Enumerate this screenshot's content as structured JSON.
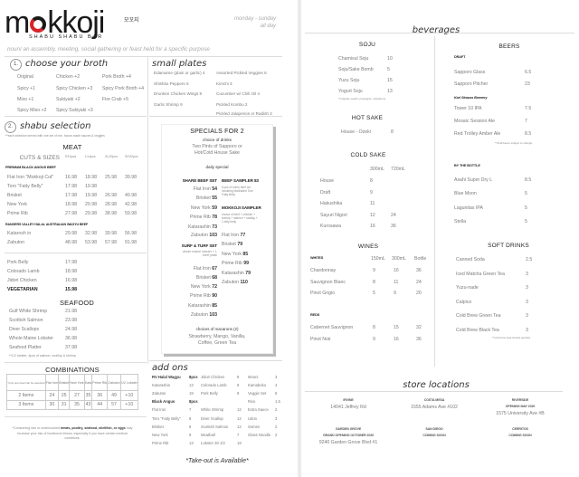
{
  "header": {
    "logo": "mokkoji",
    "logo_korean": "모꼬지",
    "logo_sub": "SHABU SHABU BAR",
    "hours_days": "monday - sunday",
    "hours_time": "all day",
    "tagline": "noun/ an assembly, meeting, social gathering or feast held for a specific purpose"
  },
  "broth": {
    "number": "1.",
    "title": "choose your broth",
    "items": [
      "Original",
      "Spicy +1",
      "Miso +1",
      "Spicy Miso +2",
      "Chicken +2",
      "Spicy Chicken +3",
      "Sukiyaki +2",
      "Spicy Sukiyaki +3",
      "Pork Broth +4",
      "Spicy Pork Broth +4",
      "Fire Crab +5"
    ]
  },
  "small_plates": {
    "title": "small plates",
    "items": [
      "Edamame (plain or garlic) 4",
      "Shishito Peppers 6",
      "Drunken Chicken Wings 9",
      "Garlic Shrimp 9",
      "Assorted Pickled Veggies 6",
      "Kimchi 3",
      "Cucumber w/ Chili Oil 4",
      "Pickled Kombu 2",
      "Pickled Jalapenos or Radish 2"
    ]
  },
  "shabu": {
    "number": "2.",
    "title": "shabu selection",
    "note": "**each selection served with one set of rice, house-made sauces & veggies",
    "meat_title": "MEAT",
    "sizes_label": "CUTS & SIZES",
    "sizes": [
      "R10pcs",
      "L14pcs",
      "XL20pcs",
      "SH32pcs"
    ],
    "premium_label": "PREMIUM BLACK ANGUS BEEF",
    "premium": [
      {
        "name": "Flat Iron \"Mokkoji Cut\"",
        "prices": [
          "16.98",
          "18.98",
          "25.98",
          "39.98"
        ]
      },
      {
        "name": "Toro \"Fatty Belly\"",
        "prices": [
          "17.98",
          "19.98",
          "",
          ""
        ]
      },
      {
        "name": "Brisket",
        "prices": [
          "17.98",
          "19.98",
          "26.98",
          "40.98"
        ]
      },
      {
        "name": "New York",
        "prices": [
          "18.98",
          "20.98",
          "28.98",
          "42.98"
        ]
      },
      {
        "name": "Prime Rib",
        "prices": [
          "27.98",
          "29.98",
          "38.98",
          "59.98"
        ]
      }
    ],
    "wagyu_label": "RANGERS VALLEY HALAL AUSTRALIAN WAGYU BEEF",
    "wagyu": [
      {
        "name": "Katarosh in",
        "prices": [
          "29.98",
          "32.98",
          "39.98",
          "56.98"
        ]
      },
      {
        "name": "Zabuton",
        "prices": [
          "48.98",
          "53.98",
          "57.98",
          "91.98"
        ]
      }
    ],
    "others": [
      {
        "name": "Pork Belly",
        "price": "17.98"
      },
      {
        "name": "Colorado Lamb",
        "price": "18.98"
      },
      {
        "name": "Jidori Chicken",
        "price": "16.98"
      }
    ],
    "vegetarian": {
      "name": "VEGETARIAN",
      "price": "15.98"
    },
    "seafood_title": "SEAFOOD",
    "seafood": [
      {
        "name": "Gulf White Shrimp",
        "price": "21.98"
      },
      {
        "name": "Scottish Salmon",
        "price": "23.98"
      },
      {
        "name": "Diver Scallops",
        "price": "24.98"
      },
      {
        "name": "Whole Maine Lobster",
        "price": "36.98"
      },
      {
        "name": "Seafood Platter",
        "price": "37.98"
      }
    ],
    "seafood_note": "**1/2 lobster, 4pcs of salmon, scallop & shrimp"
  },
  "combinations": {
    "title": "COMBINATIONS",
    "corner_note": "*only one beef can be selected",
    "columns": [
      "Flat Iron",
      "Brisket",
      "New York",
      "Kata",
      "Prime Rib",
      "Zabuton",
      "1/2 Lobster"
    ],
    "rows": [
      {
        "label": "2 Items",
        "values": [
          "24",
          "25",
          "27",
          "35",
          "36",
          "49",
          "+10"
        ]
      },
      {
        "label": "3 Items",
        "values": [
          "30",
          "31",
          "35",
          "43",
          "44",
          "57",
          "+10"
        ]
      }
    ]
  },
  "disclaimer": {
    "pre": "*Consuming raw or undercooked ",
    "bold": "meats, poultry, seafood, shellfish, or eggs",
    "post": " may increase your risk of foodborne illness, especially if you have certain medical conditions."
  },
  "specials": {
    "title": "SPECIALS FOR 2",
    "drinks_label": "choice of drinks",
    "drinks_1": "Two Pints of Sapporo or",
    "drinks_2": "Hot/Cold House Sake",
    "daily": "daily special",
    "share_beef": {
      "title": "SHARE BEEF SET",
      "items": [
        {
          "name": "Flat Iron",
          "price": "54"
        },
        {
          "name": "Brisket",
          "price": "55"
        },
        {
          "name": "New York",
          "price": "59"
        },
        {
          "name": "Prime Rib",
          "price": "78"
        },
        {
          "name": "Katarashin",
          "price": "73"
        },
        {
          "name": "Zabuton",
          "price": "103"
        }
      ]
    },
    "surf_turf": {
      "title": "SURF & TURF SET",
      "note_1": "whole maine lobster + L",
      "note_2": "beef plate",
      "items": [
        {
          "name": "Flat Iron",
          "price": "67"
        },
        {
          "name": "Brisket",
          "price": "68"
        },
        {
          "name": "New York",
          "price": "72"
        },
        {
          "name": "Prime Rib",
          "price": "90"
        },
        {
          "name": "Katarashin",
          "price": "85"
        },
        {
          "name": "Zabuton",
          "price": "103"
        }
      ]
    },
    "beef_sampler": {
      "title": "BEEF SAMPLER 83",
      "note_1": "6 pcs of every beef cut",
      "note_2": "including Marinated Toro",
      "note_3": "Fatty Belly"
    },
    "mokkoji_sampler": {
      "title": "MOKKOJI SAMPLER",
      "note_1": "choice of beef + chicken +",
      "note_2": "shrimp + salmon + scallop +",
      "note_3": "L fatty belly",
      "items": [
        {
          "name": "Flat Iron",
          "price": "77"
        },
        {
          "name": "Brisket",
          "price": "79"
        },
        {
          "name": "New York",
          "price": "85"
        },
        {
          "name": "Prime Rib",
          "price": "99"
        },
        {
          "name": "Katarashin",
          "price": "79"
        },
        {
          "name": "Zabuton",
          "price": "110"
        }
      ]
    },
    "macarons_label": "choices of macarons (2)",
    "macarons_1": "Strawberry, Mango, Vanilla,",
    "macarons_2": "Coffee, Green Tea"
  },
  "add_ons": {
    "title": "add ons",
    "rows": [
      [
        "RV Halal Wagyu",
        "8pcs",
        "Jidori Chicken",
        "8",
        "Mooni",
        "3"
      ],
      [
        "Katarashin",
        "13",
        "Colorado Lamb",
        "8",
        "Kamaboko",
        "4"
      ],
      [
        "Zabuton",
        "19",
        "Pork Belly",
        "8",
        "Veggie Set",
        "6"
      ],
      [
        "Black Angus",
        "8pcs",
        "",
        "",
        "Rice",
        "1.5"
      ],
      [
        "Flat Iron",
        "7",
        "White Shrimp",
        "12",
        "Extra Sauce",
        "2"
      ],
      [
        "Toro \"Fatty Belly\"",
        "8",
        "Diver Scallop",
        "12",
        "Udon",
        "3"
      ],
      [
        "Brisket",
        "8",
        "Scottish Salmon",
        "12",
        "Somen",
        "2"
      ],
      [
        "New York",
        "9",
        "Meatball",
        "7",
        "Glass Noodle",
        "2"
      ],
      [
        "Prime Rib",
        "13",
        "Lobster   30   1/2",
        "19",
        "",
        ""
      ]
    ]
  },
  "takeout": "*Take-out is Available*",
  "beverages": {
    "title": "beverages",
    "soju": {
      "title": "SOJU",
      "items": [
        {
          "name": "Chamisul Soju",
          "price": "10"
        },
        {
          "name": "Soju/Sake Bomb",
          "price": "5"
        },
        {
          "name": "Yuzu Soju",
          "price": "15"
        },
        {
          "name": "Yogurt Soju",
          "price": "13"
        }
      ],
      "note": "**original, peach, pineapple, strawberry"
    },
    "hot_sake": {
      "title": "HOT SAKE",
      "items": [
        {
          "name": "House - Ozeki",
          "price": "8"
        }
      ]
    },
    "cold_sake": {
      "title": "COLD SAKE",
      "columns": [
        "300mL",
        "720mL"
      ],
      "items": [
        {
          "name": "House",
          "prices": [
            "8",
            ""
          ]
        },
        {
          "name": "Draft",
          "prices": [
            "9",
            ""
          ]
        },
        {
          "name": "Hakushika",
          "prices": [
            "11",
            ""
          ]
        },
        {
          "name": "Sayuri Nigori",
          "prices": [
            "12",
            "24"
          ]
        },
        {
          "name": "Kurosawa",
          "prices": [
            "16",
            "36"
          ]
        }
      ]
    },
    "wines": {
      "title": "WINES",
      "columns": [
        "150mL",
        "300mL",
        "Bottle"
      ],
      "whites_label": "WHITES",
      "whites": [
        {
          "name": "Chardonnay",
          "prices": [
            "9",
            "16",
            "36"
          ]
        },
        {
          "name": "Sauvignon Blanc",
          "prices": [
            "8",
            "11",
            "24"
          ]
        },
        {
          "name": "Pinot Grigio",
          "prices": [
            "5",
            "9",
            "20"
          ]
        }
      ],
      "reds_label": "REDS",
      "reds": [
        {
          "name": "Cabernet Sauvignon",
          "prices": [
            "8",
            "15",
            "32"
          ]
        },
        {
          "name": "Pinot Noir",
          "prices": [
            "9",
            "16",
            "36"
          ]
        }
      ]
    },
    "beers": {
      "title": "BEERS",
      "draft_label": "DRAFT",
      "draft": [
        {
          "name": "Sapporo Glass",
          "price": "6.5"
        },
        {
          "name": "Sapporo Pitcher",
          "price": "23"
        }
      ],
      "brewery_label": "Karl Strauss Brewery",
      "brewery": [
        {
          "name": "Tower 10 IPA",
          "price": "7.5"
        },
        {
          "name": "Mosaic Session Ale",
          "price": "7"
        },
        {
          "name": "Red Trolley Amber Ale",
          "price": "8.5"
        }
      ],
      "note": "**draft beers subject to change.",
      "bottle_label": "BY THE BOTTLE",
      "bottle": [
        {
          "name": "Asahi Super Dry L",
          "price": "8.5"
        },
        {
          "name": "Blue Moon",
          "price": "5"
        },
        {
          "name": "Lagunitas IPA",
          "price": "5"
        },
        {
          "name": "Stella",
          "price": "5"
        }
      ]
    },
    "soft_drinks": {
      "title": "SOFT DRINKS",
      "items": [
        {
          "name": "Canned Soda",
          "price": "2.5"
        },
        {
          "name": "Iced Matcha Green Tea",
          "price": "3"
        },
        {
          "name": "Yuzu-nade",
          "price": "3"
        },
        {
          "name": "Calpico",
          "price": "3"
        },
        {
          "name": "Cold Brew Green Tea",
          "price": "3"
        },
        {
          "name": "Cold Brew Black Tea",
          "price": "3"
        }
      ],
      "note": "**cold brew teas limited quantity"
    }
  },
  "stores": {
    "title": "store locations",
    "locations": [
      {
        "name": "IRVINE",
        "lines": [
          "14041 Jeffrey Rd"
        ]
      },
      {
        "name": "COSTA MESA",
        "lines": [
          "1555 Adams Ave #102"
        ]
      },
      {
        "name": "RIVERSIDE",
        "lines": [
          "OPENING MAY 2020",
          "1575 University Ave #B"
        ]
      },
      {
        "name": "GARDEN GROVE",
        "lines": [
          "GRAND OPENING OCTOBER 2020",
          "9240 Garden Grove Blvd #1"
        ]
      },
      {
        "name": "SAN DIEGO",
        "lines": [
          "COMING SOON"
        ]
      },
      {
        "name": "CERRITOS",
        "lines": [
          "COMING SOON"
        ]
      }
    ]
  },
  "colors": {
    "brand_red": "#d8232a",
    "text_dark": "#222222",
    "text_grey": "#7a7a7a"
  }
}
